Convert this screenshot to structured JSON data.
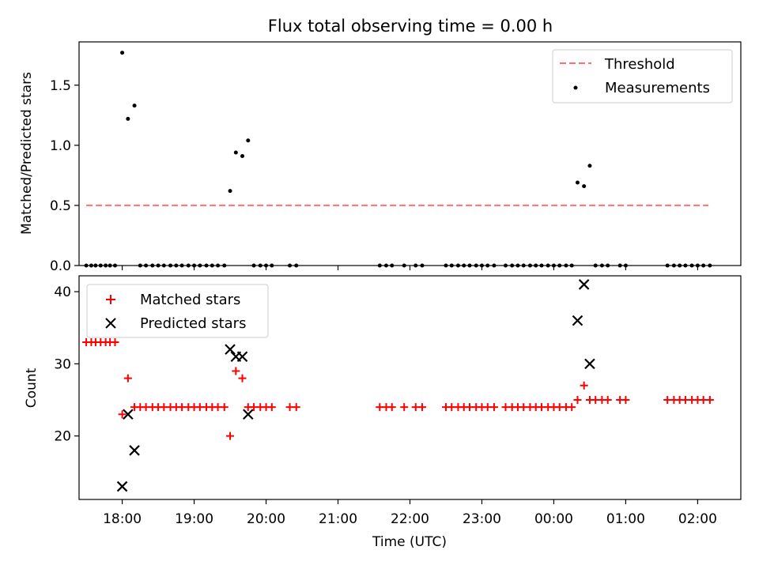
{
  "chart_data": [
    {
      "type": "scatter",
      "title": "Flux total observing time = 0.00 h",
      "xlabel": "",
      "ylabel": "Matched/Predicted stars",
      "xlim": [
        -0.6,
        8.6
      ],
      "ylim": [
        0,
        1.86
      ],
      "yticks": [
        0.0,
        0.5,
        1.0,
        1.5
      ],
      "ytick_labels": [
        "0.0",
        "0.5",
        "1.0",
        "1.5"
      ],
      "legend_position": "upper right",
      "threshold": {
        "name": "Threshold",
        "value": 0.5,
        "x_range": [
          -0.5,
          8.15
        ],
        "color": "#ff7070"
      },
      "series": [
        {
          "name": "Measurements",
          "color": "#000000",
          "points": [
            [
              -0.5,
              0
            ],
            [
              -0.43,
              0
            ],
            [
              -0.37,
              0
            ],
            [
              -0.3,
              0
            ],
            [
              -0.23,
              0
            ],
            [
              -0.17,
              0
            ],
            [
              -0.1,
              0
            ],
            [
              0.0,
              1.77
            ],
            [
              0.08,
              1.22
            ],
            [
              0.17,
              1.33
            ],
            [
              0.25,
              0
            ],
            [
              0.33,
              0
            ],
            [
              0.42,
              0
            ],
            [
              0.5,
              0
            ],
            [
              0.58,
              0
            ],
            [
              0.67,
              0
            ],
            [
              0.75,
              0
            ],
            [
              0.83,
              0
            ],
            [
              0.92,
              0
            ],
            [
              1.0,
              0
            ],
            [
              1.08,
              0
            ],
            [
              1.17,
              0
            ],
            [
              1.25,
              0
            ],
            [
              1.33,
              0
            ],
            [
              1.42,
              0
            ],
            [
              1.5,
              0.62
            ],
            [
              1.58,
              0.94
            ],
            [
              1.67,
              0.91
            ],
            [
              1.75,
              1.04
            ],
            [
              1.83,
              0
            ],
            [
              1.92,
              0
            ],
            [
              2.0,
              0
            ],
            [
              2.08,
              0
            ],
            [
              2.33,
              0
            ],
            [
              2.42,
              0
            ],
            [
              3.58,
              0
            ],
            [
              3.67,
              0
            ],
            [
              3.75,
              0
            ],
            [
              3.92,
              0
            ],
            [
              4.08,
              0
            ],
            [
              4.17,
              0
            ],
            [
              4.5,
              0
            ],
            [
              4.58,
              0
            ],
            [
              4.67,
              0
            ],
            [
              4.75,
              0
            ],
            [
              4.83,
              0
            ],
            [
              4.92,
              0
            ],
            [
              5.0,
              0
            ],
            [
              5.08,
              0
            ],
            [
              5.17,
              0
            ],
            [
              5.33,
              0
            ],
            [
              5.42,
              0
            ],
            [
              5.5,
              0
            ],
            [
              5.58,
              0
            ],
            [
              5.67,
              0
            ],
            [
              5.75,
              0
            ],
            [
              5.83,
              0
            ],
            [
              5.92,
              0
            ],
            [
              6.0,
              0
            ],
            [
              6.08,
              0
            ],
            [
              6.17,
              0
            ],
            [
              6.25,
              0
            ],
            [
              6.33,
              0.69
            ],
            [
              6.42,
              0.66
            ],
            [
              6.5,
              0.83
            ],
            [
              6.58,
              0
            ],
            [
              6.67,
              0
            ],
            [
              6.75,
              0
            ],
            [
              6.92,
              0
            ],
            [
              7.0,
              0
            ],
            [
              7.58,
              0
            ],
            [
              7.67,
              0
            ],
            [
              7.75,
              0
            ],
            [
              7.83,
              0
            ],
            [
              7.92,
              0
            ],
            [
              8.0,
              0
            ],
            [
              8.08,
              0
            ],
            [
              8.17,
              0
            ]
          ]
        }
      ]
    },
    {
      "type": "scatter",
      "title": "",
      "xlabel": "Time (UTC)",
      "ylabel": "Count",
      "xlim": [
        -0.6,
        8.6
      ],
      "ylim": [
        11.2,
        42.2
      ],
      "yticks": [
        20,
        30,
        40
      ],
      "ytick_labels": [
        "20",
        "30",
        "40"
      ],
      "xticks": [
        0,
        1,
        2,
        3,
        4,
        5,
        6,
        7,
        8
      ],
      "xtick_labels": [
        "18:00",
        "19:00",
        "20:00",
        "21:00",
        "22:00",
        "23:00",
        "00:00",
        "01:00",
        "02:00"
      ],
      "legend_position": "upper left",
      "series": [
        {
          "name": "Matched stars",
          "marker": "plus",
          "color": "#ff0000",
          "points": [
            [
              -0.5,
              33
            ],
            [
              -0.43,
              33
            ],
            [
              -0.37,
              33
            ],
            [
              -0.3,
              33
            ],
            [
              -0.23,
              33
            ],
            [
              -0.17,
              33
            ],
            [
              -0.1,
              33
            ],
            [
              0.0,
              23
            ],
            [
              0.08,
              28
            ],
            [
              0.17,
              24
            ],
            [
              0.25,
              24
            ],
            [
              0.33,
              24
            ],
            [
              0.42,
              24
            ],
            [
              0.5,
              24
            ],
            [
              0.58,
              24
            ],
            [
              0.67,
              24
            ],
            [
              0.75,
              24
            ],
            [
              0.83,
              24
            ],
            [
              0.92,
              24
            ],
            [
              1.0,
              24
            ],
            [
              1.08,
              24
            ],
            [
              1.17,
              24
            ],
            [
              1.25,
              24
            ],
            [
              1.33,
              24
            ],
            [
              1.42,
              24
            ],
            [
              1.5,
              20
            ],
            [
              1.58,
              29
            ],
            [
              1.67,
              28
            ],
            [
              1.75,
              24
            ],
            [
              1.83,
              24
            ],
            [
              1.92,
              24
            ],
            [
              2.0,
              24
            ],
            [
              2.08,
              24
            ],
            [
              2.33,
              24
            ],
            [
              2.42,
              24
            ],
            [
              3.58,
              24
            ],
            [
              3.67,
              24
            ],
            [
              3.75,
              24
            ],
            [
              3.92,
              24
            ],
            [
              4.08,
              24
            ],
            [
              4.17,
              24
            ],
            [
              4.5,
              24
            ],
            [
              4.58,
              24
            ],
            [
              4.67,
              24
            ],
            [
              4.75,
              24
            ],
            [
              4.83,
              24
            ],
            [
              4.92,
              24
            ],
            [
              5.0,
              24
            ],
            [
              5.08,
              24
            ],
            [
              5.17,
              24
            ],
            [
              5.33,
              24
            ],
            [
              5.42,
              24
            ],
            [
              5.5,
              24
            ],
            [
              5.58,
              24
            ],
            [
              5.67,
              24
            ],
            [
              5.75,
              24
            ],
            [
              5.83,
              24
            ],
            [
              5.92,
              24
            ],
            [
              6.0,
              24
            ],
            [
              6.08,
              24
            ],
            [
              6.17,
              24
            ],
            [
              6.25,
              24
            ],
            [
              6.33,
              25
            ],
            [
              6.42,
              27
            ],
            [
              6.5,
              25
            ],
            [
              6.58,
              25
            ],
            [
              6.67,
              25
            ],
            [
              6.75,
              25
            ],
            [
              6.92,
              25
            ],
            [
              7.0,
              25
            ],
            [
              7.58,
              25
            ],
            [
              7.67,
              25
            ],
            [
              7.75,
              25
            ],
            [
              7.83,
              25
            ],
            [
              7.92,
              25
            ],
            [
              8.0,
              25
            ],
            [
              8.08,
              25
            ],
            [
              8.17,
              25
            ]
          ]
        },
        {
          "name": "Predicted stars",
          "marker": "x",
          "color": "#000000",
          "points": [
            [
              0.0,
              13
            ],
            [
              0.08,
              23
            ],
            [
              0.17,
              18
            ],
            [
              1.5,
              32
            ],
            [
              1.58,
              31
            ],
            [
              1.67,
              31
            ],
            [
              1.75,
              23
            ],
            [
              6.33,
              36
            ],
            [
              6.42,
              41
            ],
            [
              6.5,
              30
            ]
          ]
        }
      ]
    }
  ]
}
